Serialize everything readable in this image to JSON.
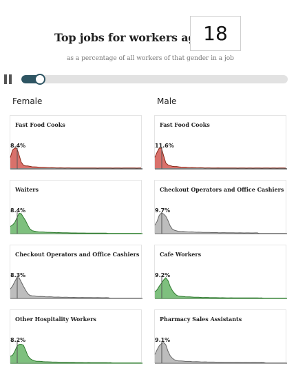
{
  "header": {
    "title": "Top jobs for workers aged",
    "age": "18",
    "subtitle": "as a percentage of all workers of that gender in a job"
  },
  "controls": {
    "playing": true,
    "progress": 0.05
  },
  "colors": {
    "red": "#d9716b",
    "red_line": "#8a2a1a",
    "red_tail": "#e07a3a",
    "green": "#7ec07e",
    "green_line": "#2f7a2f",
    "grey": "#bdbdbd",
    "grey_line": "#666666",
    "slider": "#2e5563"
  },
  "columns": {
    "female": "Female",
    "male": "Male"
  },
  "female": [
    {
      "title": "Fast Food Cooks",
      "pct": "8.4%",
      "color": "red"
    },
    {
      "title": "Waiters",
      "pct": "8.4%",
      "color": "green"
    },
    {
      "title": "Checkout Operators and Office Cashiers",
      "pct": "8.3%",
      "color": "grey"
    },
    {
      "title": "Other Hospitality Workers",
      "pct": "8.2%",
      "color": "green"
    }
  ],
  "male": [
    {
      "title": "Fast Food Cooks",
      "pct": "11.6%",
      "color": "red"
    },
    {
      "title": "Checkout Operators and Office Cashiers",
      "pct": "9.7%",
      "color": "grey"
    },
    {
      "title": "Cafe Workers",
      "pct": "9.2%",
      "color": "green"
    },
    {
      "title": "Pharmacy Sales Assistants",
      "pct": "9.1%",
      "color": "grey"
    }
  ]
}
